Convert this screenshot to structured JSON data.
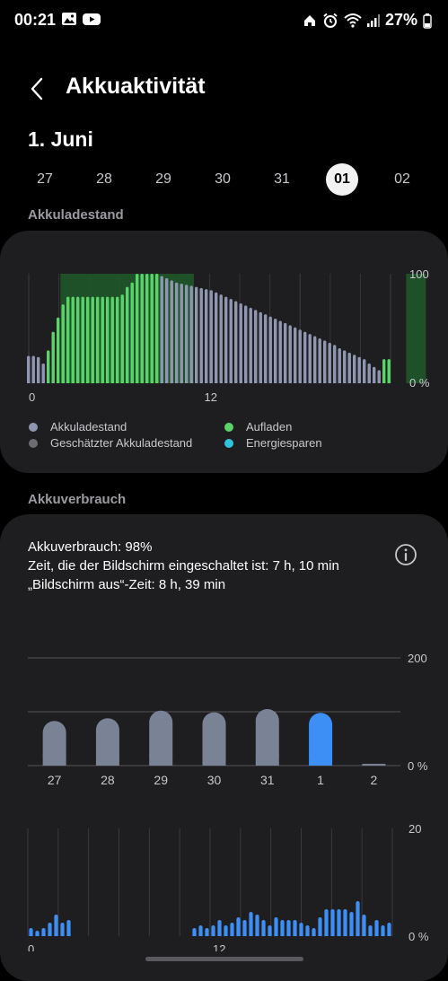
{
  "status_bar": {
    "time": "00:21",
    "left_icons": [
      "gallery-icon",
      "youtube-icon"
    ],
    "right_icons": [
      "home-icon",
      "alarm-icon",
      "wifi-icon",
      "signal-icon"
    ],
    "battery": "27%"
  },
  "header": {
    "title": "Akkuaktivität"
  },
  "date": {
    "title": "1. Juni",
    "days": [
      "27",
      "28",
      "29",
      "30",
      "31",
      "01",
      "02"
    ],
    "selected_index": 5
  },
  "battery_level": {
    "section_label": "Akkuladestand",
    "chart_data": {
      "type": "bar",
      "x_tick_labels": [
        "0",
        "12"
      ],
      "y_tick_labels": [
        "100",
        "0 %"
      ],
      "ylim": [
        0,
        100
      ],
      "charging_intervals_bar_index": [
        [
          7,
          33
        ],
        [
          77,
          80
        ]
      ],
      "values": [
        25,
        25,
        24,
        18,
        30,
        47,
        60,
        72,
        79,
        79,
        79,
        79,
        79,
        79,
        79,
        79,
        79,
        79,
        79,
        81,
        88,
        92,
        100,
        100,
        100,
        100,
        100,
        98,
        96,
        94,
        92,
        91,
        90,
        89,
        88,
        87,
        86,
        85,
        83,
        81,
        79,
        77,
        75,
        73,
        71,
        69,
        67,
        65,
        63,
        61,
        59,
        57,
        55,
        53,
        51,
        49,
        47,
        45,
        43,
        41,
        39,
        37,
        35,
        32,
        30,
        28,
        26,
        24,
        22,
        18,
        15,
        12,
        22,
        22
      ],
      "series_kind": [
        "level",
        "level",
        "level",
        "level",
        "charging",
        "charging",
        "charging",
        "charging",
        "charging",
        "charging",
        "charging",
        "charging",
        "charging",
        "charging",
        "charging",
        "charging",
        "charging",
        "charging",
        "charging",
        "charging",
        "charging",
        "charging",
        "charging",
        "charging",
        "charging",
        "charging",
        "charging",
        "level",
        "level",
        "level",
        "level",
        "level",
        "level",
        "level",
        "level",
        "level",
        "level",
        "level",
        "level",
        "level",
        "level",
        "level",
        "level",
        "level",
        "level",
        "level",
        "level",
        "level",
        "level",
        "level",
        "level",
        "level",
        "level",
        "level",
        "level",
        "level",
        "level",
        "level",
        "level",
        "level",
        "level",
        "level",
        "level",
        "level",
        "level",
        "level",
        "level",
        "level",
        "level",
        "level",
        "level",
        "level",
        "charging",
        "charging"
      ],
      "legend": [
        {
          "label": "Akkuladestand",
          "color": "#8e96b0"
        },
        {
          "label": "Geschätzter Akkuladestand",
          "color": "#6c6c72"
        },
        {
          "label": "Aufladen",
          "color": "#5bd36b"
        },
        {
          "label": "Energiesparen",
          "color": "#2ec4dd"
        }
      ]
    }
  },
  "usage": {
    "section_label": "Akkuverbrauch",
    "line1": "Akkuverbrauch: 98%",
    "line2": "Zeit, die der Bildschirm eingeschaltet ist: 7 h, 10 min",
    "line3": "„Bildschirm aus“-Zeit: 8 h, 39 min",
    "info_icon": "info-icon"
  },
  "daily_chart": {
    "chart_data": {
      "type": "bar",
      "categories": [
        "27",
        "28",
        "29",
        "30",
        "31",
        "1",
        "2"
      ],
      "values": [
        83,
        88,
        102,
        99,
        105,
        98,
        2
      ],
      "ylim": [
        0,
        200
      ],
      "y_tick_labels": [
        "200",
        "0 %"
      ],
      "selected_index": 5,
      "colors": {
        "default": "#7a8296",
        "selected": "#3d8ff5"
      }
    }
  },
  "hourly_chart": {
    "chart_data": {
      "type": "bar",
      "x_tick_labels": [
        "0",
        "12"
      ],
      "y_tick_labels": [
        "20",
        "0 %"
      ],
      "ylim": [
        0,
        20
      ],
      "values": [
        1.5,
        1,
        1.5,
        2.5,
        4,
        2.5,
        3,
        0,
        0,
        0,
        0,
        0,
        0,
        0,
        0,
        0,
        0,
        0,
        0,
        0,
        0,
        0,
        0,
        0,
        0,
        0,
        1.5,
        2,
        1.5,
        2,
        3,
        2,
        2.5,
        3.5,
        3,
        4.5,
        4,
        3,
        2,
        3.5,
        3,
        3,
        3,
        2.5,
        2,
        1.5,
        3.5,
        5,
        5,
        5,
        5,
        4.5,
        6.5,
        4,
        2,
        3,
        2,
        2.5
      ],
      "color": "#3d8ff5"
    }
  }
}
